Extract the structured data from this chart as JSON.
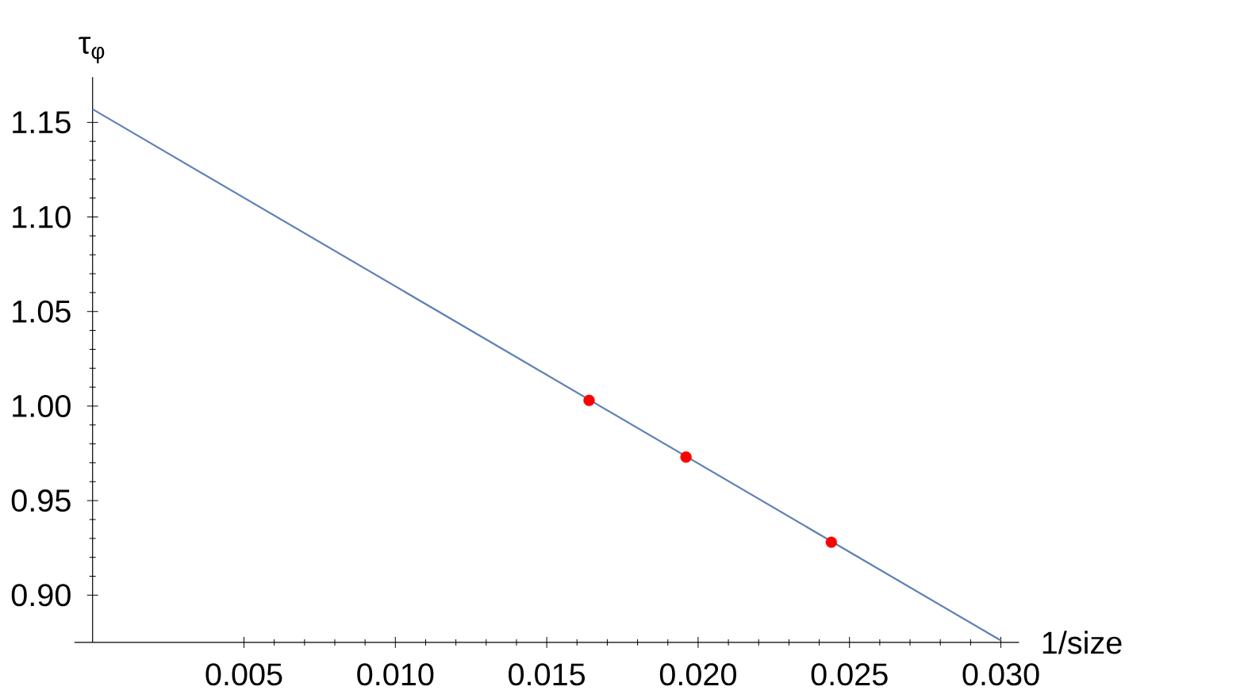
{
  "chart_data": {
    "type": "scatter",
    "xlabel": "1/size",
    "ylabel": "τ$_{φ}$",
    "xlim": [
      -0.0006,
      0.0306
    ],
    "ylim": [
      0.875,
      1.174
    ],
    "xticks": [
      0.005,
      {
        "value": 0.01,
        "label": "0.010"
      },
      0.015,
      {
        "value": 0.02,
        "label": "0.020"
      },
      0.025,
      {
        "value": 0.03,
        "label": "0.030"
      }
    ],
    "yticks": [
      {
        "value": 0.9,
        "label": "0.90"
      },
      0.95,
      {
        "value": 1.0,
        "label": "1.00"
      },
      1.05,
      {
        "value": 1.1,
        "label": "1.10"
      },
      1.15
    ],
    "series": [
      {
        "type": "line",
        "color": "#5e81b5",
        "x": [
          0,
          0.03
        ],
        "values": [
          1.157,
          0.876
        ]
      },
      {
        "marker": "circle",
        "color": "#ff0000",
        "x": [
          0.0164,
          0.0196,
          0.0244
        ],
        "values": [
          1.003,
          0.973,
          0.928
        ]
      }
    ]
  }
}
